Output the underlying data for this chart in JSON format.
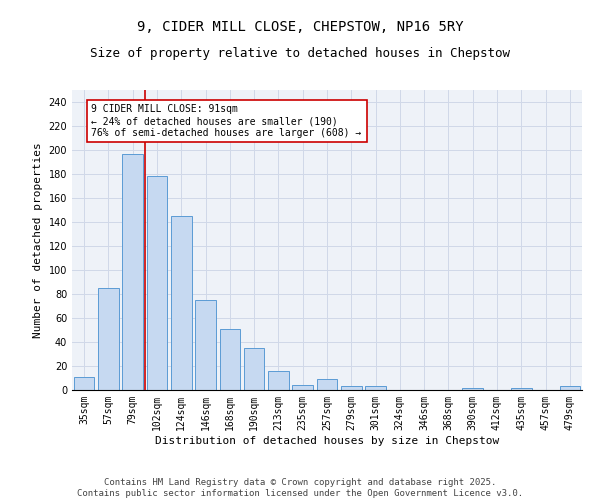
{
  "title_line1": "9, CIDER MILL CLOSE, CHEPSTOW, NP16 5RY",
  "title_line2": "Size of property relative to detached houses in Chepstow",
  "xlabel": "Distribution of detached houses by size in Chepstow",
  "ylabel": "Number of detached properties",
  "categories": [
    "35sqm",
    "57sqm",
    "79sqm",
    "102sqm",
    "124sqm",
    "146sqm",
    "168sqm",
    "190sqm",
    "213sqm",
    "235sqm",
    "257sqm",
    "279sqm",
    "301sqm",
    "324sqm",
    "346sqm",
    "368sqm",
    "390sqm",
    "412sqm",
    "435sqm",
    "457sqm",
    "479sqm"
  ],
  "values": [
    11,
    85,
    197,
    178,
    145,
    75,
    51,
    35,
    16,
    4,
    9,
    3,
    3,
    0,
    0,
    0,
    2,
    0,
    2,
    0,
    3
  ],
  "bar_color": "#c6d9f1",
  "bar_edge_color": "#5b9bd5",
  "vline_color": "#cc0000",
  "vline_pos": 2.5,
  "annotation_text": "9 CIDER MILL CLOSE: 91sqm\n← 24% of detached houses are smaller (190)\n76% of semi-detached houses are larger (608) →",
  "annotation_box_color": "#cc0000",
  "ylim": [
    0,
    250
  ],
  "yticks": [
    0,
    20,
    40,
    60,
    80,
    100,
    120,
    140,
    160,
    180,
    200,
    220,
    240
  ],
  "grid_color": "#d0d8e8",
  "background_color": "#eef2f8",
  "footer_text": "Contains HM Land Registry data © Crown copyright and database right 2025.\nContains public sector information licensed under the Open Government Licence v3.0.",
  "title_fontsize": 10,
  "subtitle_fontsize": 9,
  "axis_label_fontsize": 8,
  "tick_fontsize": 7,
  "annotation_fontsize": 7,
  "footer_fontsize": 6.5
}
